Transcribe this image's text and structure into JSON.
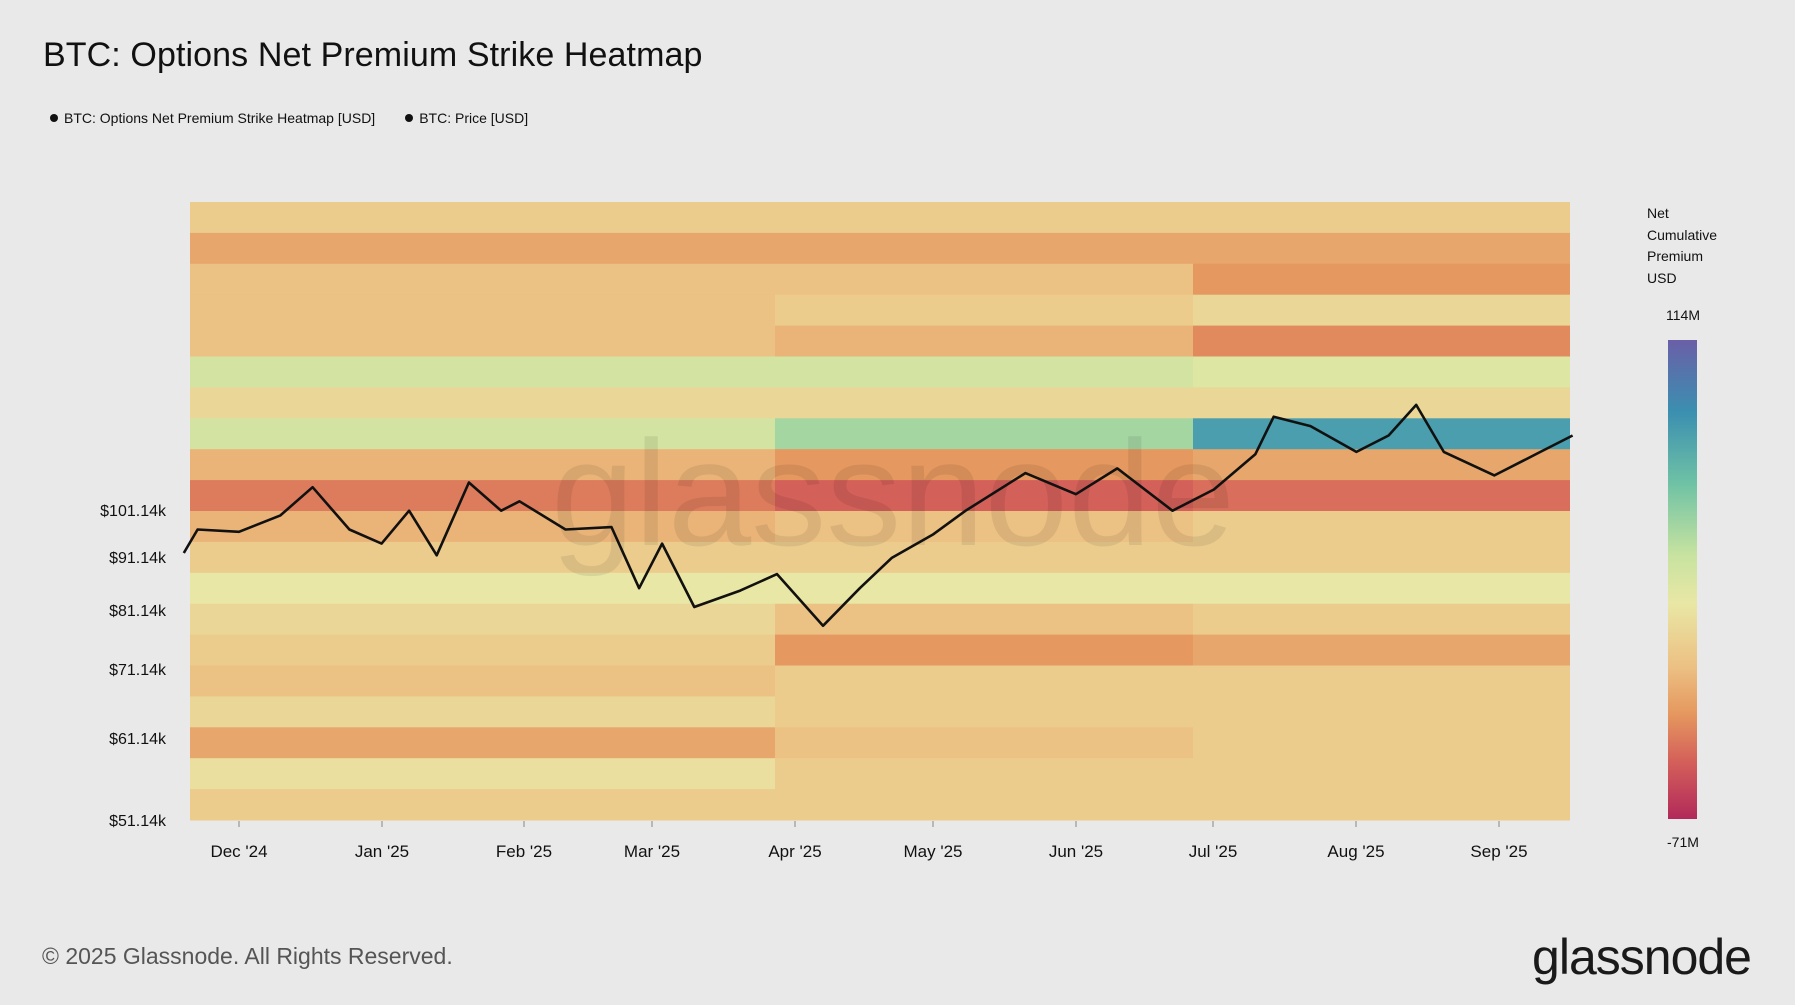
{
  "title": "BTC: Options Net Premium Strike Heatmap",
  "legend": [
    {
      "label": "BTC: Options Net Premium Strike Heatmap [USD]",
      "color": "#111111"
    },
    {
      "label": "BTC: Price [USD]",
      "color": "#111111"
    }
  ],
  "colorbar": {
    "title_lines": [
      "Net",
      "Cumulative",
      "Premium",
      "USD"
    ],
    "max_label": "114M",
    "min_label": "-71M"
  },
  "watermark": "glassnode",
  "footer": {
    "copyright": "© 2025 Glassnode. All Rights Reserved.",
    "logo": "glassnode"
  },
  "chart_data": {
    "type": "heatmap",
    "title": "BTC: Options Net Premium Strike Heatmap",
    "x_ticks": [
      "Dec '24",
      "Jan '25",
      "Feb '25",
      "Mar '25",
      "Apr '25",
      "May '25",
      "Jun '25",
      "Jul '25",
      "Aug '25",
      "Sep '25"
    ],
    "y_ticks": [
      "$101.14k",
      "$91.14k",
      "$81.14k",
      "$71.14k",
      "$61.14k",
      "$51.14k"
    ],
    "color_scale": {
      "min": -71000000,
      "max": 114000000,
      "unit": "USD"
    },
    "heatmap_periods": [
      "Nov '24 - Mar '25",
      "Apr '25 - Jun '25",
      "Jul '25 - Sep '25"
    ],
    "heatmap_rows_top_to_bottom": [
      [
        -10,
        -10,
        -10
      ],
      [
        -25,
        -25,
        -25
      ],
      [
        -15,
        -15,
        -30
      ],
      [
        -15,
        -10,
        -5
      ],
      [
        -15,
        -20,
        -35
      ],
      [
        15,
        15,
        10
      ],
      [
        -5,
        -5,
        -5
      ],
      [
        15,
        30,
        70
      ],
      [
        -20,
        -30,
        -25
      ],
      [
        -40,
        -50,
        -45
      ],
      [
        -20,
        -15,
        -10
      ],
      [
        -10,
        -10,
        -10
      ],
      [
        5,
        5,
        5
      ],
      [
        -5,
        -15,
        -10
      ],
      [
        -10,
        -30,
        -25
      ],
      [
        -15,
        -10,
        -10
      ],
      [
        -5,
        -10,
        -10
      ],
      [
        -25,
        -15,
        -10
      ],
      [
        0,
        -10,
        -10
      ],
      [
        -10,
        -10,
        -10
      ]
    ],
    "price_series": {
      "name": "BTC: Price [USD]",
      "x": [
        "2024-11-19",
        "2024-11-22",
        "2024-12-01",
        "2024-12-10",
        "2024-12-17",
        "2024-12-25",
        "2025-01-01",
        "2025-01-07",
        "2025-01-13",
        "2025-01-20",
        "2025-01-27",
        "2025-01-31",
        "2025-02-10",
        "2025-02-20",
        "2025-02-26",
        "2025-03-03",
        "2025-03-10",
        "2025-03-20",
        "2025-03-28",
        "2025-04-07",
        "2025-04-15",
        "2025-04-22",
        "2025-05-01",
        "2025-05-08",
        "2025-05-21",
        "2025-06-01",
        "2025-06-10",
        "2025-06-22",
        "2025-07-01",
        "2025-07-10",
        "2025-07-14",
        "2025-07-22",
        "2025-08-01",
        "2025-08-08",
        "2025-08-14",
        "2025-08-20",
        "2025-08-31",
        "2025-09-10",
        "2025-09-17"
      ],
      "y": [
        92000,
        97000,
        96500,
        100000,
        106000,
        97000,
        94000,
        101000,
        91500,
        107000,
        101000,
        103000,
        97000,
        97500,
        84500,
        94000,
        80500,
        84000,
        87500,
        76500,
        84500,
        91000,
        96000,
        101000,
        109000,
        104500,
        110000,
        101000,
        105500,
        113000,
        121000,
        119000,
        113500,
        117000,
        123500,
        113500,
        108500,
        113500,
        117000
      ]
    }
  }
}
